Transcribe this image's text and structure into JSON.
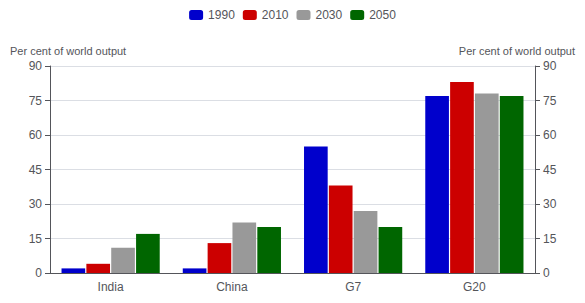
{
  "chart_data": {
    "type": "bar",
    "categories": [
      "India",
      "China",
      "G7",
      "G20"
    ],
    "series": [
      {
        "name": "1990",
        "color": "#0000cc",
        "values": [
          2,
          2,
          55,
          77
        ]
      },
      {
        "name": "2010",
        "color": "#cc0000",
        "values": [
          4,
          13,
          38,
          83
        ]
      },
      {
        "name": "2030",
        "color": "#999999",
        "values": [
          11,
          22,
          27,
          78
        ]
      },
      {
        "name": "2050",
        "color": "#006600",
        "values": [
          17,
          20,
          20,
          77
        ]
      }
    ],
    "ylabel": "Per cent of world output",
    "y2label": "Per cent of world output",
    "ylim": [
      0,
      90
    ],
    "yticks": [
      0,
      15,
      30,
      45,
      60,
      75,
      90
    ],
    "y2lim": [
      0,
      90
    ],
    "y2ticks": [
      0,
      15,
      30,
      45,
      60,
      75,
      90
    ],
    "grid": true,
    "legend": "top"
  }
}
